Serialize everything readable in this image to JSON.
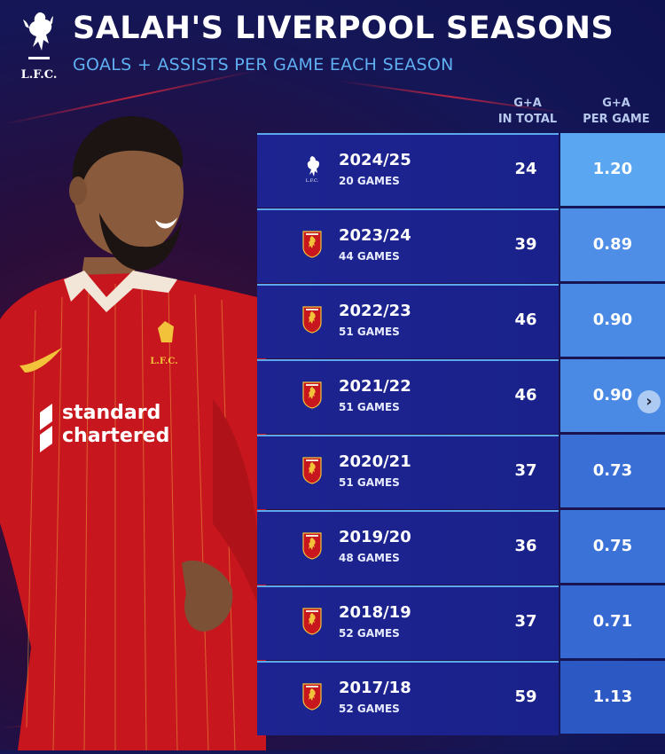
{
  "header": {
    "title": "SALAH'S LIVERPOOL SEASONS",
    "subtitle": "GOALS + ASSISTS PER GAME EACH SEASON",
    "logo_text": "L.F.C."
  },
  "columns": {
    "total_line1": "G+A",
    "total_line2": "IN TOTAL",
    "pergame_line1": "G+A",
    "pergame_line2": "PER GAME"
  },
  "rows": [
    {
      "season": "2024/25",
      "games": "20 GAMES",
      "total": "24",
      "per_game": "1.20",
      "per_game_color": "#5aa6f0",
      "crest": "liverbird-white"
    },
    {
      "season": "2023/24",
      "games": "44 GAMES",
      "total": "39",
      "per_game": "0.89",
      "per_game_color": "#4e8ee6",
      "crest": "lfc-crest"
    },
    {
      "season": "2022/23",
      "games": "51 GAMES",
      "total": "46",
      "per_game": "0.90",
      "per_game_color": "#4a8ae4",
      "crest": "lfc-crest"
    },
    {
      "season": "2021/22",
      "games": "51 GAMES",
      "total": "46",
      "per_game": "0.90",
      "per_game_color": "#4a8ae4",
      "crest": "lfc-crest"
    },
    {
      "season": "2020/21",
      "games": "51 GAMES",
      "total": "37",
      "per_game": "0.73",
      "per_game_color": "#3a6fd6",
      "crest": "lfc-crest"
    },
    {
      "season": "2019/20",
      "games": "48 GAMES",
      "total": "36",
      "per_game": "0.75",
      "per_game_color": "#3b72d8",
      "crest": "lfc-crest"
    },
    {
      "season": "2018/19",
      "games": "52 GAMES",
      "total": "37",
      "per_game": "0.71",
      "per_game_color": "#366ad2",
      "crest": "lfc-crest"
    },
    {
      "season": "2017/18",
      "games": "52 GAMES",
      "total": "59",
      "per_game": "1.13",
      "per_game_color": "#2c58c4",
      "crest": "lfc-crest"
    }
  ],
  "player_shirt": {
    "sponsor_line1": "standard",
    "sponsor_line2": "chartered",
    "badge_text": "L.F.C."
  },
  "next_button": "›"
}
